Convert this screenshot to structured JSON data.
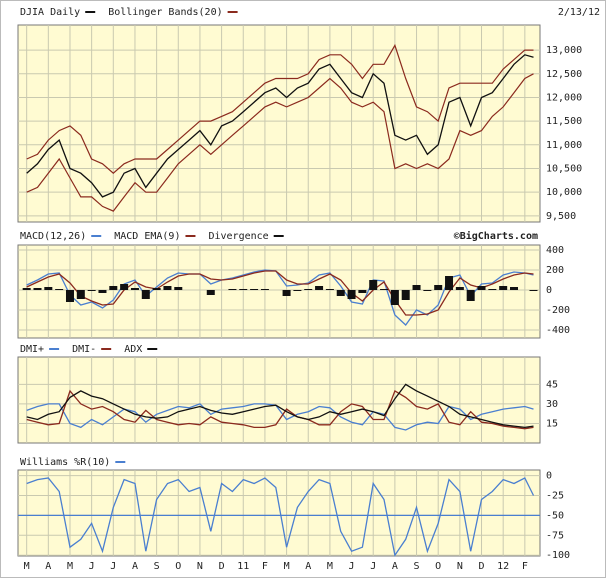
{
  "chart_data": [
    {
      "type": "line",
      "date_label": "2/13/12",
      "x": [
        0,
        0.5,
        1,
        1.5,
        2,
        2.5,
        3,
        3.5,
        4,
        4.5,
        5,
        5.5,
        6,
        6.5,
        7,
        7.5,
        8,
        8.5,
        9,
        9.5,
        10,
        10.5,
        11,
        11.5,
        12,
        12.5,
        13,
        13.5,
        14,
        14.5,
        15,
        15.5,
        16,
        16.5,
        17,
        17.5,
        18,
        18.5,
        19,
        19.5,
        20,
        20.5,
        21,
        21.5,
        22,
        22.5,
        23,
        23.4
      ],
      "xlim": [
        -0.4,
        23.7
      ],
      "ylim": [
        9370,
        13530
      ],
      "yticks": [
        {
          "value": 9500,
          "label": "9,500"
        },
        {
          "value": 10000,
          "label": "10,000"
        },
        {
          "value": 10500,
          "label": "10,500"
        },
        {
          "value": 11000,
          "label": "11,000"
        },
        {
          "value": 11500,
          "label": "11,500"
        },
        {
          "value": 12000,
          "label": "12,000"
        },
        {
          "value": 12500,
          "label": "12,500"
        },
        {
          "value": 13000,
          "label": "13,000"
        }
      ],
      "series": [
        {
          "name": "DJIA Daily",
          "color": "#111111",
          "values": [
            10400,
            10600,
            10900,
            11100,
            10500,
            10400,
            10200,
            9900,
            10000,
            10400,
            10500,
            10100,
            10400,
            10700,
            10900,
            11100,
            11300,
            11000,
            11400,
            11500,
            11700,
            11900,
            12100,
            12200,
            12000,
            12200,
            12300,
            12600,
            12700,
            12400,
            12100,
            12000,
            12500,
            12300,
            11200,
            11100,
            11200,
            10800,
            11000,
            11900,
            12000,
            11400,
            12000,
            12100,
            12400,
            12700,
            12900,
            12850
          ]
        },
        {
          "name": "Bollinger Bands(20)",
          "color": "#8b2a1e",
          "kind": "band",
          "upper": [
            10700,
            10800,
            11100,
            11300,
            11400,
            11200,
            10700,
            10600,
            10400,
            10600,
            10700,
            10700,
            10700,
            10900,
            11100,
            11300,
            11500,
            11500,
            11600,
            11700,
            11900,
            12100,
            12300,
            12400,
            12400,
            12400,
            12500,
            12800,
            12900,
            12900,
            12700,
            12400,
            12700,
            12700,
            13100,
            12400,
            11800,
            11700,
            11500,
            12200,
            12300,
            12300,
            12300,
            12300,
            12600,
            12800,
            13000,
            13000
          ],
          "lower": [
            10000,
            10100,
            10400,
            10700,
            10300,
            9900,
            9900,
            9700,
            9600,
            9900,
            10200,
            10000,
            10000,
            10300,
            10600,
            10800,
            11000,
            10800,
            11000,
            11200,
            11400,
            11600,
            11800,
            11900,
            11800,
            11900,
            12000,
            12200,
            12400,
            12200,
            11900,
            11800,
            11900,
            11700,
            10500,
            10600,
            10500,
            10600,
            10500,
            10700,
            11300,
            11200,
            11300,
            11600,
            11800,
            12100,
            12400,
            12500
          ]
        }
      ]
    },
    {
      "type": "line",
      "credit": "©BigCharts.com",
      "x": [
        0,
        0.5,
        1,
        1.5,
        2,
        2.5,
        3,
        3.5,
        4,
        4.5,
        5,
        5.5,
        6,
        6.5,
        7,
        7.5,
        8,
        8.5,
        9,
        9.5,
        10,
        10.5,
        11,
        11.5,
        12,
        12.5,
        13,
        13.5,
        14,
        14.5,
        15,
        15.5,
        16,
        16.5,
        17,
        17.5,
        18,
        18.5,
        19,
        19.5,
        20,
        20.5,
        21,
        21.5,
        22,
        22.5,
        23,
        23.4
      ],
      "xlim": [
        -0.4,
        23.7
      ],
      "ylim": [
        -480,
        450
      ],
      "yticks": [
        -400,
        -200,
        0,
        200,
        400
      ],
      "series": [
        {
          "name": "MACD(12,26)",
          "color": "#4a7fd0",
          "values": [
            50,
            100,
            160,
            170,
            -50,
            -150,
            -120,
            -180,
            -100,
            60,
            100,
            -60,
            30,
            120,
            170,
            160,
            160,
            60,
            100,
            120,
            150,
            180,
            200,
            190,
            40,
            50,
            70,
            150,
            170,
            40,
            -120,
            -140,
            100,
            90,
            -250,
            -350,
            -200,
            -250,
            -150,
            120,
            150,
            -60,
            60,
            70,
            150,
            180,
            170,
            150
          ]
        },
        {
          "name": "MACD EMA(9)",
          "color": "#8b2a1e",
          "values": [
            30,
            80,
            130,
            160,
            70,
            -60,
            -110,
            -150,
            -140,
            0,
            80,
            30,
            10,
            80,
            140,
            160,
            160,
            110,
            100,
            110,
            140,
            170,
            190,
            190,
            100,
            60,
            60,
            110,
            160,
            100,
            -30,
            -110,
            0,
            80,
            -100,
            -250,
            -250,
            -240,
            -200,
            -20,
            120,
            50,
            20,
            60,
            110,
            150,
            170,
            160
          ]
        },
        {
          "name": "Divergence",
          "color": "#111111",
          "kind": "bar",
          "values": [
            20,
            20,
            30,
            10,
            -120,
            -90,
            -10,
            -30,
            40,
            60,
            20,
            -90,
            20,
            40,
            30,
            0,
            0,
            -50,
            0,
            10,
            10,
            10,
            10,
            0,
            -60,
            -10,
            10,
            40,
            10,
            -60,
            -90,
            -30,
            100,
            10,
            -150,
            -100,
            50,
            -10,
            50,
            140,
            30,
            -110,
            40,
            10,
            40,
            30,
            0,
            -10
          ]
        }
      ]
    },
    {
      "type": "line",
      "x": [
        0,
        0.5,
        1,
        1.5,
        2,
        2.5,
        3,
        3.5,
        4,
        4.5,
        5,
        5.5,
        6,
        6.5,
        7,
        7.5,
        8,
        8.5,
        9,
        9.5,
        10,
        10.5,
        11,
        11.5,
        12,
        12.5,
        13,
        13.5,
        14,
        14.5,
        15,
        15.5,
        16,
        16.5,
        17,
        17.5,
        18,
        18.5,
        19,
        19.5,
        20,
        20.5,
        21,
        21.5,
        22,
        22.5,
        23,
        23.4
      ],
      "xlim": [
        -0.4,
        23.7
      ],
      "ylim": [
        0,
        66
      ],
      "yticks": [
        15,
        30,
        45
      ],
      "series": [
        {
          "name": "DMI+",
          "color": "#4a7fd0",
          "values": [
            25,
            28,
            30,
            30,
            15,
            12,
            18,
            14,
            20,
            26,
            24,
            16,
            22,
            25,
            28,
            27,
            30,
            22,
            26,
            27,
            28,
            30,
            30,
            29,
            18,
            22,
            24,
            28,
            27,
            20,
            16,
            14,
            24,
            22,
            12,
            10,
            14,
            16,
            15,
            28,
            26,
            18,
            22,
            24,
            26,
            27,
            28,
            26
          ]
        },
        {
          "name": "DMI-",
          "color": "#8b2a1e",
          "values": [
            18,
            16,
            14,
            15,
            40,
            30,
            26,
            28,
            24,
            18,
            16,
            25,
            18,
            16,
            14,
            15,
            14,
            20,
            16,
            15,
            14,
            12,
            12,
            14,
            26,
            20,
            18,
            14,
            14,
            24,
            30,
            28,
            18,
            18,
            40,
            35,
            28,
            26,
            30,
            16,
            14,
            24,
            16,
            15,
            13,
            12,
            11,
            12
          ]
        },
        {
          "name": "ADX",
          "color": "#111111",
          "values": [
            20,
            18,
            22,
            24,
            35,
            40,
            36,
            34,
            30,
            26,
            22,
            20,
            19,
            20,
            24,
            26,
            28,
            25,
            23,
            22,
            24,
            26,
            28,
            29,
            24,
            20,
            18,
            20,
            24,
            22,
            24,
            26,
            24,
            21,
            34,
            45,
            40,
            36,
            32,
            28,
            22,
            20,
            18,
            16,
            14,
            13,
            12,
            13
          ]
        }
      ]
    },
    {
      "type": "line",
      "reference_line": -50,
      "x": [
        0,
        0.5,
        1,
        1.5,
        2,
        2.5,
        3,
        3.5,
        4,
        4.5,
        5,
        5.5,
        6,
        6.5,
        7,
        7.5,
        8,
        8.5,
        9,
        9.5,
        10,
        10.5,
        11,
        11.5,
        12,
        12.5,
        13,
        13.5,
        14,
        14.5,
        15,
        15.5,
        16,
        16.5,
        17,
        17.5,
        18,
        18.5,
        19,
        19.5,
        20,
        20.5,
        21,
        21.5,
        22,
        22.5,
        23,
        23.4
      ],
      "xlim": [
        -0.4,
        23.7
      ],
      "ylim": [
        -101,
        7
      ],
      "yticks": [
        -100,
        -75,
        -50,
        -25,
        0
      ],
      "xticks": [
        {
          "value": 0,
          "label": "M"
        },
        {
          "value": 1,
          "label": "A"
        },
        {
          "value": 2,
          "label": "M"
        },
        {
          "value": 3,
          "label": "J"
        },
        {
          "value": 4,
          "label": "J"
        },
        {
          "value": 5,
          "label": "A"
        },
        {
          "value": 6,
          "label": "S"
        },
        {
          "value": 7,
          "label": "O"
        },
        {
          "value": 8,
          "label": "N"
        },
        {
          "value": 9,
          "label": "D"
        },
        {
          "value": 10,
          "label": "11"
        },
        {
          "value": 11,
          "label": "F"
        },
        {
          "value": 12,
          "label": "M"
        },
        {
          "value": 13,
          "label": "A"
        },
        {
          "value": 14,
          "label": "M"
        },
        {
          "value": 15,
          "label": "J"
        },
        {
          "value": 16,
          "label": "J"
        },
        {
          "value": 17,
          "label": "A"
        },
        {
          "value": 18,
          "label": "S"
        },
        {
          "value": 19,
          "label": "O"
        },
        {
          "value": 20,
          "label": "N"
        },
        {
          "value": 21,
          "label": "D"
        },
        {
          "value": 22,
          "label": "12"
        },
        {
          "value": 23,
          "label": "F"
        }
      ],
      "series": [
        {
          "name": "Williams %R(10)",
          "color": "#4a7fd0",
          "values": [
            -10,
            -5,
            -3,
            -20,
            -90,
            -80,
            -60,
            -95,
            -40,
            -5,
            -10,
            -95,
            -30,
            -10,
            -5,
            -20,
            -15,
            -70,
            -10,
            -20,
            -5,
            -10,
            -3,
            -15,
            -90,
            -40,
            -20,
            -5,
            -10,
            -70,
            -95,
            -90,
            -10,
            -30,
            -100,
            -80,
            -40,
            -95,
            -60,
            -5,
            -20,
            -95,
            -30,
            -20,
            -5,
            -10,
            -3,
            -25
          ]
        }
      ]
    }
  ]
}
